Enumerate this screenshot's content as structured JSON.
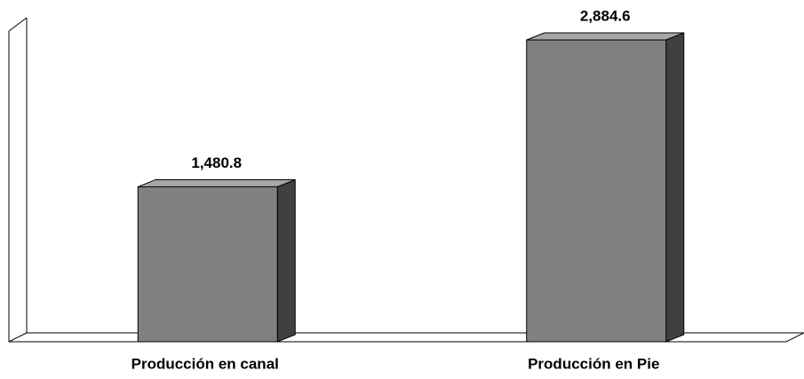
{
  "chart_data": {
    "type": "bar3d",
    "categories": [
      "Producción en canal",
      "Producción en Pie"
    ],
    "values": [
      1480.8,
      2884.6
    ],
    "value_labels": [
      "1,480.8",
      "2,884.6"
    ],
    "color": "#808080"
  }
}
